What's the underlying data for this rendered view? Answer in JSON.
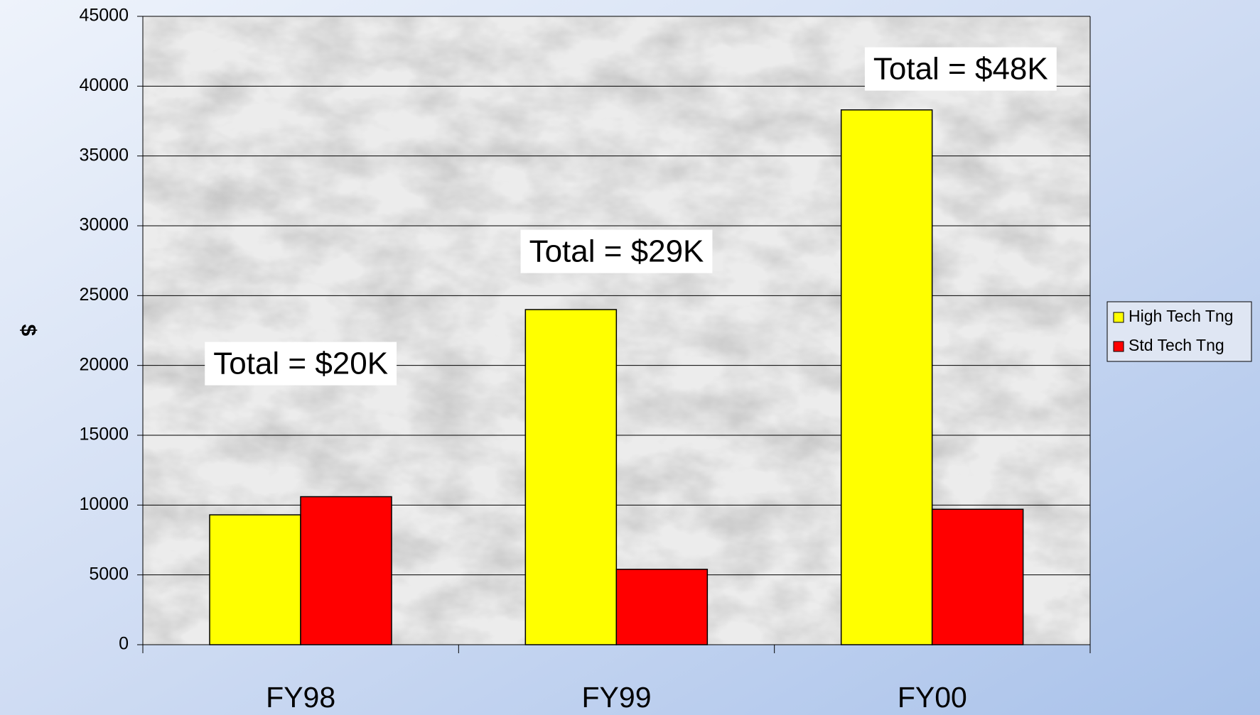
{
  "chart_data": {
    "type": "bar",
    "ylabel": "$",
    "categories": [
      "FY98",
      "FY99",
      "FY00"
    ],
    "series": [
      {
        "name": "High Tech Tng",
        "color": "#ffff00",
        "values": [
          9300,
          24000,
          38300
        ]
      },
      {
        "name": "Std Tech Tng",
        "color": "#ff0000",
        "values": [
          10600,
          5400,
          9700
        ]
      }
    ],
    "annotations": [
      "Total = $20K",
      "Total = $29K",
      "Total = $48K"
    ],
    "ylim": [
      0,
      45000
    ],
    "yticks": [
      0,
      5000,
      10000,
      15000,
      20000,
      25000,
      30000,
      35000,
      40000,
      45000
    ],
    "grid": true,
    "legend": "right"
  }
}
